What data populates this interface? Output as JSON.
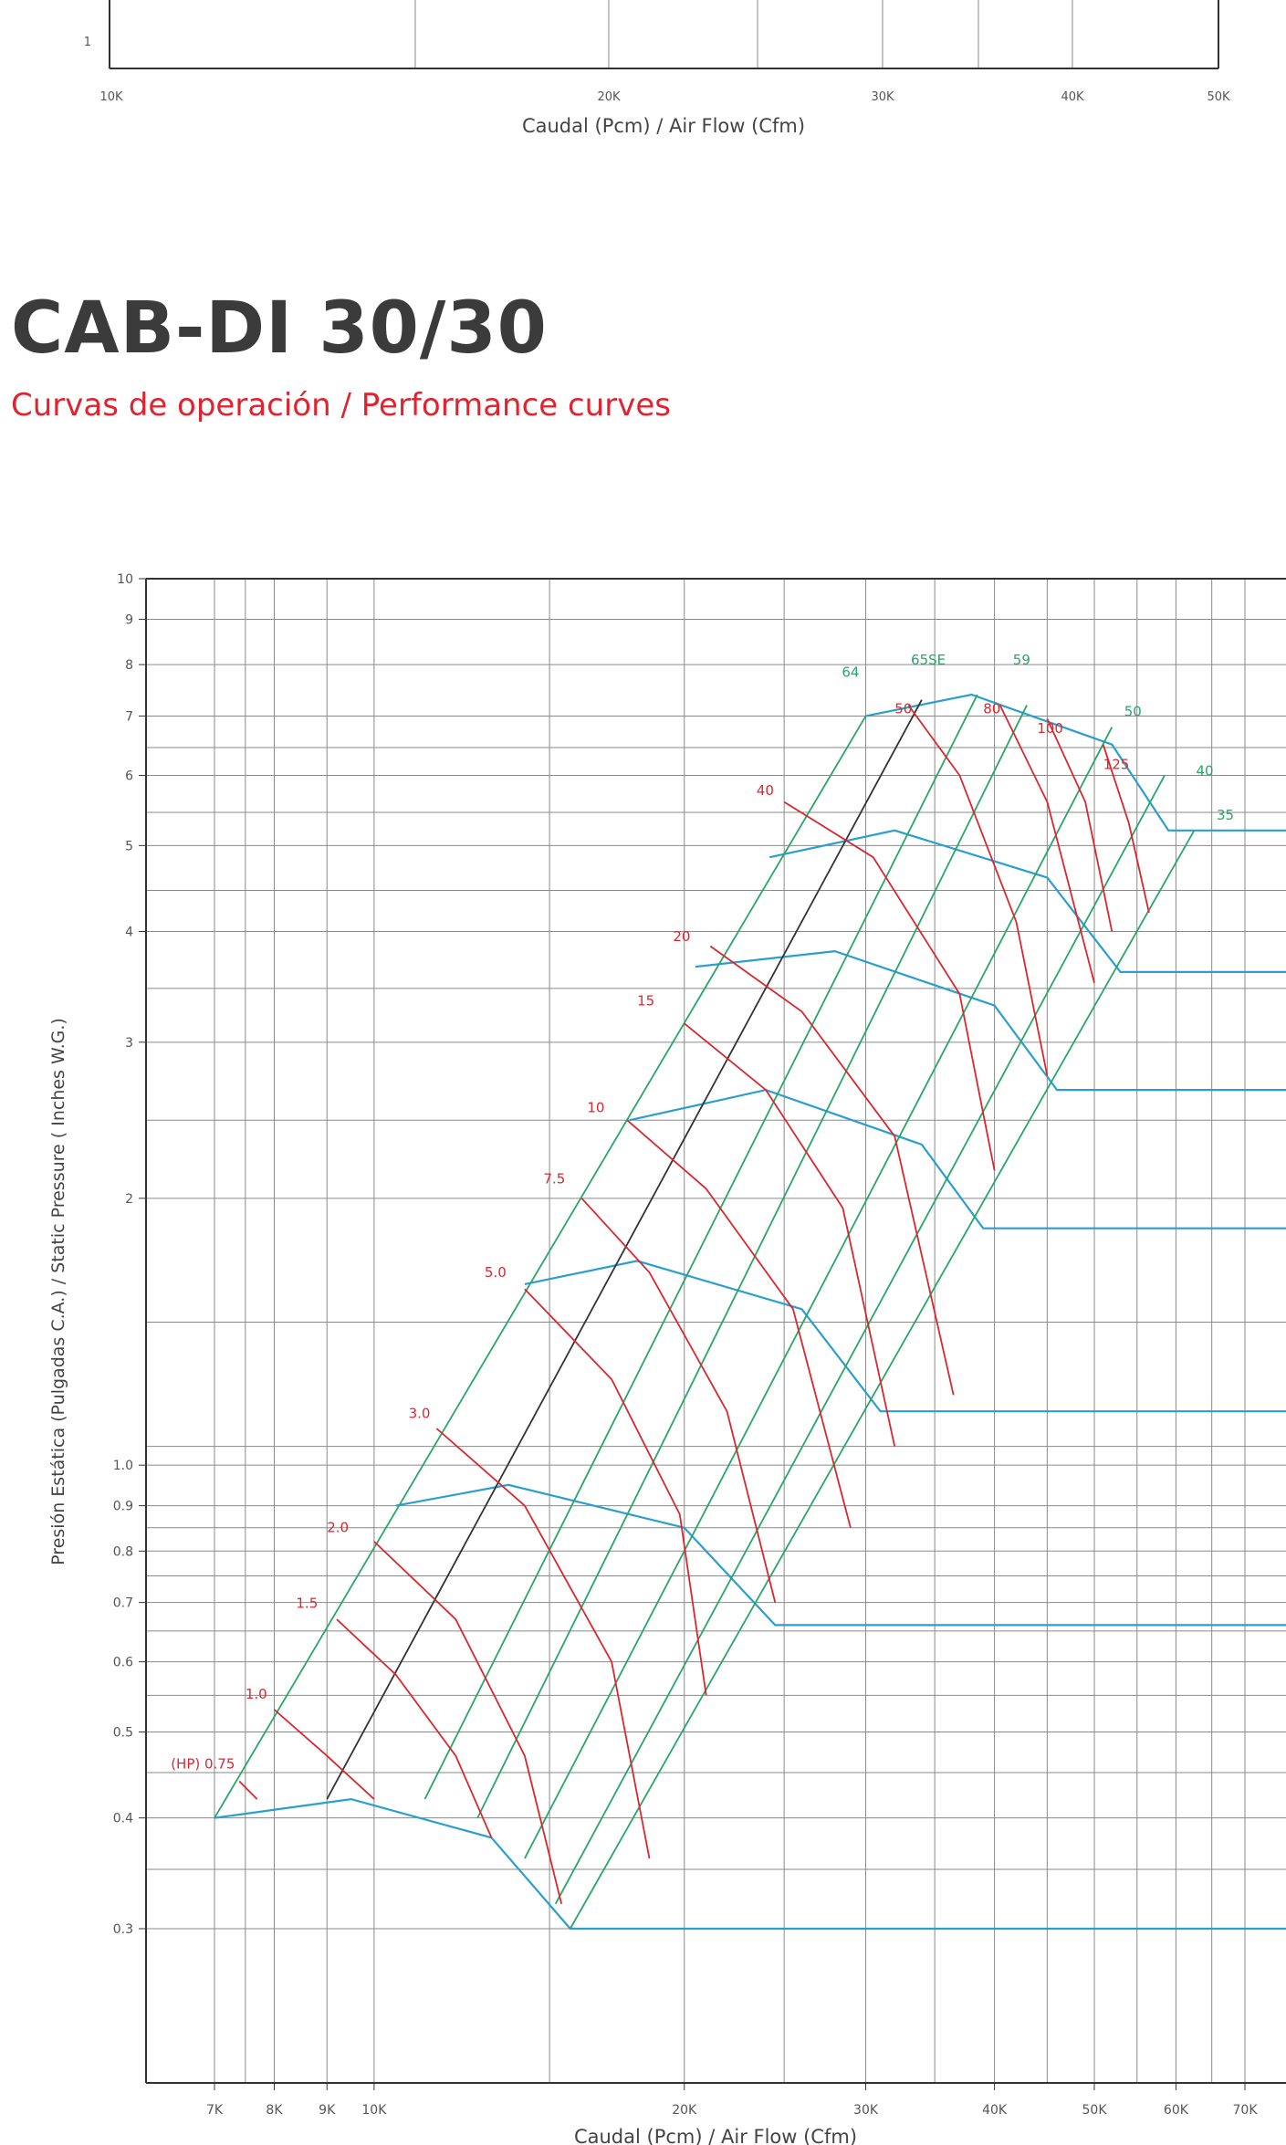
{
  "colors": {
    "grid": "#8a8a8a",
    "axis": "#333333",
    "rpm": "#2aa568",
    "hp": "#d9272e",
    "system": "#2a9fcf",
    "tick_text": "#555555"
  },
  "top_chart": {
    "xlabel": "Caudal (Pcm) / Air Flow (Cfm)",
    "x_ticks": [
      "10K",
      "20K",
      "30K",
      "40K",
      "50K"
    ],
    "y_ticks": [
      "1"
    ]
  },
  "header": {
    "title": "CAB-DI 30/30",
    "subtitle": "Curvas de operación / Performance curves"
  },
  "chart_data": {
    "type": "line",
    "xscale": "log",
    "yscale": "log",
    "xlabel": "Caudal (Pcm) / Air Flow (Cfm)",
    "ylabel": "Presión Estática (Pulgadas C.A.)  /  Static Pressure ( Inches W.G.)",
    "xlim": [
      6000,
      78000
    ],
    "ylim": [
      0.22,
      10
    ],
    "x_ticks": [
      {
        "v": 7000,
        "label": "7K"
      },
      {
        "v": 8000,
        "label": "8K"
      },
      {
        "v": 9000,
        "label": "9K"
      },
      {
        "v": 10000,
        "label": "10K"
      },
      {
        "v": 20000,
        "label": "20K"
      },
      {
        "v": 30000,
        "label": "30K"
      },
      {
        "v": 40000,
        "label": "40K"
      },
      {
        "v": 50000,
        "label": "50K"
      },
      {
        "v": 60000,
        "label": "60K"
      },
      {
        "v": 70000,
        "label": "70K"
      }
    ],
    "y_ticks": [
      {
        "v": 0.3,
        "label": "0.3"
      },
      {
        "v": 0.4,
        "label": "0.4"
      },
      {
        "v": 0.5,
        "label": "0.5"
      },
      {
        "v": 0.6,
        "label": "0.6"
      },
      {
        "v": 0.7,
        "label": "0.7"
      },
      {
        "v": 0.8,
        "label": "0.8"
      },
      {
        "v": 0.9,
        "label": "0.9"
      },
      {
        "v": 1.0,
        "label": "1.0"
      },
      {
        "v": 2,
        "label": "2"
      },
      {
        "v": 3,
        "label": "3"
      },
      {
        "v": 4,
        "label": "4"
      },
      {
        "v": 5,
        "label": "5"
      },
      {
        "v": 6,
        "label": "6"
      },
      {
        "v": 7,
        "label": "7"
      },
      {
        "v": 8,
        "label": "8"
      },
      {
        "v": 9,
        "label": "9"
      },
      {
        "v": 10,
        "label": "10"
      }
    ],
    "extra_x_grid": [
      7500,
      14800,
      25000,
      35000,
      45000,
      55000,
      65000
    ],
    "extra_y_grid": [
      0.35,
      0.45,
      0.55,
      0.65,
      0.75,
      0.85,
      1.05,
      1.45,
      2.45,
      3.45,
      4.45,
      5.45,
      6.45
    ],
    "system_curves": [
      {
        "points": [
          [
            7000,
            0.4
          ],
          [
            9500,
            0.42
          ],
          [
            13000,
            0.38
          ],
          [
            15500,
            0.3
          ],
          [
            78000,
            0.3
          ]
        ]
      },
      {
        "points": [
          [
            10500,
            0.9
          ],
          [
            13500,
            0.95
          ],
          [
            20000,
            0.85
          ],
          [
            24500,
            0.66
          ],
          [
            78000,
            0.66
          ]
        ]
      },
      {
        "points": [
          [
            14000,
            1.6
          ],
          [
            18000,
            1.7
          ],
          [
            26000,
            1.5
          ],
          [
            31000,
            1.15
          ],
          [
            78000,
            1.15
          ]
        ]
      },
      {
        "points": [
          [
            17700,
            2.45
          ],
          [
            24000,
            2.65
          ],
          [
            34000,
            2.3
          ],
          [
            39000,
            1.85
          ],
          [
            78000,
            1.85
          ]
        ]
      },
      {
        "points": [
          [
            20500,
            3.65
          ],
          [
            28000,
            3.8
          ],
          [
            40000,
            3.3
          ],
          [
            46000,
            2.65
          ],
          [
            78000,
            2.65
          ]
        ]
      },
      {
        "points": [
          [
            24200,
            4.85
          ],
          [
            32000,
            5.2
          ],
          [
            45000,
            4.6
          ],
          [
            53000,
            3.6
          ],
          [
            78000,
            3.6
          ]
        ]
      },
      {
        "points": [
          [
            30000,
            7.0
          ],
          [
            38000,
            7.4
          ],
          [
            52000,
            6.5
          ],
          [
            59000,
            5.2
          ],
          [
            78000,
            5.2
          ]
        ]
      }
    ],
    "rpm_lines": [
      {
        "label": "64",
        "from": [
          7000,
          0.4
        ],
        "to": [
          30000,
          7.0
        ],
        "lx": 29000,
        "ly": 7.75,
        "color": "rpm"
      },
      {
        "label": "65SE",
        "from": [
          9000,
          0.42
        ],
        "to": [
          34000,
          7.3
        ],
        "lx": 34500,
        "ly": 8.0,
        "color": "axis"
      },
      {
        "label": "59",
        "from": [
          11200,
          0.42
        ],
        "to": [
          38500,
          7.4
        ],
        "lx": 42500,
        "ly": 8.0,
        "color": "rpm"
      },
      {
        "label": "",
        "from": [
          12600,
          0.4
        ],
        "to": [
          43000,
          7.2
        ],
        "lx": 0,
        "ly": 0,
        "color": "rpm"
      },
      {
        "label": "50",
        "from": [
          14000,
          0.36
        ],
        "to": [
          52000,
          6.8
        ],
        "lx": 54500,
        "ly": 7.0,
        "color": "rpm"
      },
      {
        "label": "40",
        "from": [
          15000,
          0.32
        ],
        "to": [
          58500,
          6.0
        ],
        "lx": 64000,
        "ly": 6.0,
        "color": "rpm"
      },
      {
        "label": "35",
        "from": [
          15500,
          0.3
        ],
        "to": [
          62500,
          5.2
        ],
        "lx": 67000,
        "ly": 5.35,
        "color": "rpm"
      }
    ],
    "hp_curves": [
      {
        "label": "(HP) 0.75",
        "points": [
          [
            7400,
            0.44
          ],
          [
            7700,
            0.42
          ]
        ],
        "lx": 6350,
        "ly": 0.455
      },
      {
        "label": "1.0",
        "points": [
          [
            8000,
            0.53
          ],
          [
            9000,
            0.47
          ],
          [
            10000,
            0.42
          ]
        ],
        "lx": 7500,
        "ly": 0.545
      },
      {
        "label": "1.5",
        "points": [
          [
            9200,
            0.67
          ],
          [
            10500,
            0.58
          ],
          [
            12000,
            0.47
          ],
          [
            13000,
            0.38
          ]
        ],
        "lx": 8400,
        "ly": 0.69
      },
      {
        "label": "2.0",
        "points": [
          [
            10000,
            0.82
          ],
          [
            12000,
            0.67
          ],
          [
            14000,
            0.47
          ],
          [
            15200,
            0.32
          ]
        ],
        "lx": 9000,
        "ly": 0.84
      },
      {
        "label": "3.0",
        "points": [
          [
            11500,
            1.1
          ],
          [
            14000,
            0.9
          ],
          [
            17000,
            0.6
          ],
          [
            18500,
            0.36
          ]
        ],
        "lx": 10800,
        "ly": 1.13
      },
      {
        "label": "5.0",
        "points": [
          [
            14000,
            1.58
          ],
          [
            17000,
            1.25
          ],
          [
            19800,
            0.88
          ],
          [
            21000,
            0.55
          ]
        ],
        "lx": 12800,
        "ly": 1.63
      },
      {
        "label": "7.5",
        "points": [
          [
            15900,
            2.0
          ],
          [
            18500,
            1.65
          ],
          [
            22000,
            1.15
          ],
          [
            24500,
            0.7
          ]
        ],
        "lx": 14600,
        "ly": 2.08
      },
      {
        "label": "10",
        "points": [
          [
            17600,
            2.45
          ],
          [
            21000,
            2.05
          ],
          [
            25500,
            1.5
          ],
          [
            29000,
            0.85
          ]
        ],
        "lx": 16100,
        "ly": 2.5
      },
      {
        "label": "15",
        "points": [
          [
            20000,
            3.15
          ],
          [
            24000,
            2.65
          ],
          [
            28500,
            1.95
          ],
          [
            32000,
            1.05
          ]
        ],
        "lx": 18000,
        "ly": 3.3
      },
      {
        "label": "20",
        "points": [
          [
            21200,
            3.85
          ],
          [
            26000,
            3.25
          ],
          [
            32000,
            2.35
          ],
          [
            36500,
            1.2
          ]
        ],
        "lx": 19500,
        "ly": 3.9
      },
      {
        "label": "40",
        "points": [
          [
            25000,
            5.6
          ],
          [
            30500,
            4.85
          ],
          [
            37000,
            3.4
          ],
          [
            40000,
            2.15
          ]
        ],
        "lx": 23500,
        "ly": 5.7
      },
      {
        "label": "50",
        "points": [
          [
            33000,
            7.2
          ],
          [
            37000,
            6.0
          ],
          [
            42000,
            4.1
          ],
          [
            45000,
            2.75
          ]
        ],
        "lx": 32000,
        "ly": 7.05
      },
      {
        "label": "80",
        "points": [
          [
            40500,
            7.2
          ],
          [
            45000,
            5.6
          ],
          [
            50000,
            3.5
          ]
        ],
        "lx": 39000,
        "ly": 7.05
      },
      {
        "label": "100",
        "points": [
          [
            45000,
            6.95
          ],
          [
            49000,
            5.6
          ],
          [
            52000,
            4.0
          ]
        ],
        "lx": 44000,
        "ly": 6.7
      },
      {
        "label": "125",
        "points": [
          [
            51000,
            6.5
          ],
          [
            54000,
            5.3
          ],
          [
            56500,
            4.2
          ]
        ],
        "lx": 51000,
        "ly": 6.1
      }
    ]
  }
}
